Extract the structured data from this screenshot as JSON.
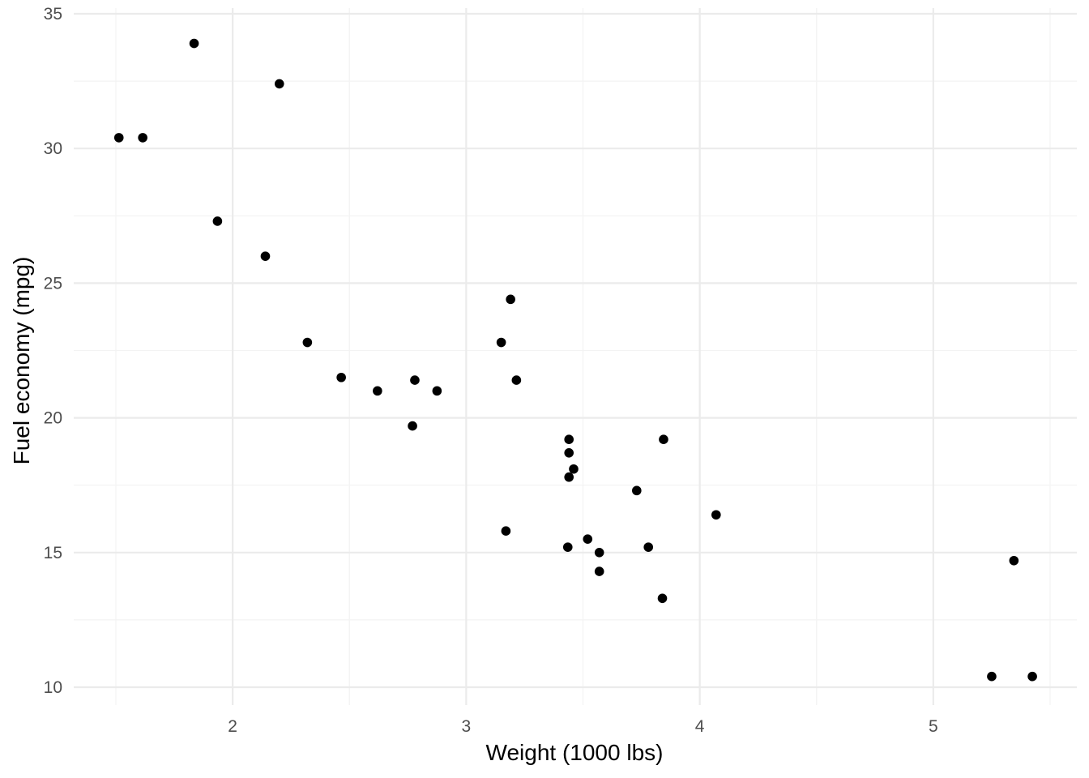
{
  "chart_data": {
    "type": "scatter",
    "title": "",
    "xlabel": "Weight (1000 lbs)",
    "ylabel": "Fuel economy (mpg)",
    "xlim": [
      1.513,
      5.424
    ],
    "ylim": [
      10.4,
      33.9
    ],
    "x_ticks": [
      2,
      3,
      4,
      5
    ],
    "y_ticks": [
      10,
      15,
      20,
      25,
      30,
      35
    ],
    "x_tick_labels": [
      "2",
      "3",
      "4",
      "5"
    ],
    "y_tick_labels": [
      "10",
      "15",
      "20",
      "25",
      "30",
      "35"
    ],
    "grid": true,
    "legend": "none",
    "point_color": "#000000",
    "points": [
      {
        "x": 2.62,
        "y": 21.0
      },
      {
        "x": 2.875,
        "y": 21.0
      },
      {
        "x": 2.32,
        "y": 22.8
      },
      {
        "x": 3.215,
        "y": 21.4
      },
      {
        "x": 3.44,
        "y": 18.7
      },
      {
        "x": 3.46,
        "y": 18.1
      },
      {
        "x": 3.57,
        "y": 14.3
      },
      {
        "x": 3.19,
        "y": 24.4
      },
      {
        "x": 3.15,
        "y": 22.8
      },
      {
        "x": 3.44,
        "y": 19.2
      },
      {
        "x": 3.44,
        "y": 17.8
      },
      {
        "x": 4.07,
        "y": 16.4
      },
      {
        "x": 3.73,
        "y": 17.3
      },
      {
        "x": 3.78,
        "y": 15.2
      },
      {
        "x": 5.25,
        "y": 10.4
      },
      {
        "x": 5.424,
        "y": 10.4
      },
      {
        "x": 5.345,
        "y": 14.7
      },
      {
        "x": 2.2,
        "y": 32.4
      },
      {
        "x": 1.615,
        "y": 30.4
      },
      {
        "x": 1.835,
        "y": 33.9
      },
      {
        "x": 2.465,
        "y": 21.5
      },
      {
        "x": 3.52,
        "y": 15.5
      },
      {
        "x": 3.435,
        "y": 15.2
      },
      {
        "x": 3.84,
        "y": 13.3
      },
      {
        "x": 3.845,
        "y": 19.2
      },
      {
        "x": 1.935,
        "y": 27.3
      },
      {
        "x": 2.14,
        "y": 26.0
      },
      {
        "x": 1.513,
        "y": 30.4
      },
      {
        "x": 3.17,
        "y": 15.8
      },
      {
        "x": 2.77,
        "y": 19.7
      },
      {
        "x": 3.57,
        "y": 15.0
      },
      {
        "x": 2.78,
        "y": 21.4
      }
    ]
  }
}
